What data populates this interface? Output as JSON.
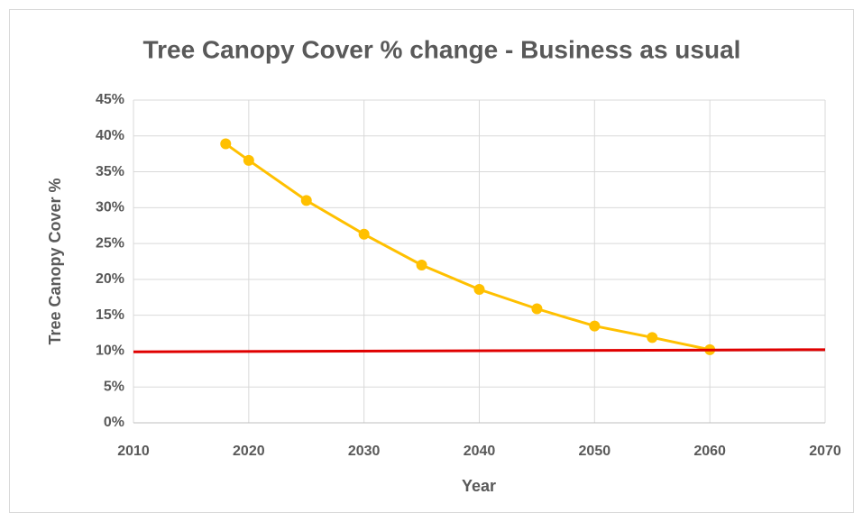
{
  "chart_data": {
    "type": "line",
    "title": "Tree Canopy Cover % change - Business as usual",
    "x_label": "Year",
    "y_label": "Tree Canopy Cover %",
    "xlim": [
      2010,
      2070
    ],
    "xticks": [
      2010,
      2020,
      2030,
      2040,
      2050,
      2060,
      2070
    ],
    "ylim": [
      0,
      45
    ],
    "yticks": [
      {
        "value": 0,
        "label": "0%"
      },
      {
        "value": 5,
        "label": "5%"
      },
      {
        "value": 10,
        "label": "10%"
      },
      {
        "value": 15,
        "label": "15%"
      },
      {
        "value": 20,
        "label": "20%"
      },
      {
        "value": 25,
        "label": "25%"
      },
      {
        "value": 30,
        "label": "30%"
      },
      {
        "value": 35,
        "label": "35%"
      },
      {
        "value": 40,
        "label": "40%"
      },
      {
        "value": 45,
        "label": "45%"
      }
    ],
    "grid": true,
    "series": [
      {
        "color": "#ffc000",
        "markers": true,
        "x": [
          2018,
          2020,
          2025,
          2030,
          2035,
          2040,
          2045,
          2050,
          2055,
          2060
        ],
        "values": [
          38.9,
          36.6,
          31.0,
          26.3,
          22.0,
          18.6,
          15.9,
          13.5,
          11.9,
          10.2
        ]
      },
      {
        "color": "#e00000",
        "markers": false,
        "x": [
          2010,
          2070
        ],
        "values": [
          9.9,
          10.2
        ]
      }
    ]
  }
}
